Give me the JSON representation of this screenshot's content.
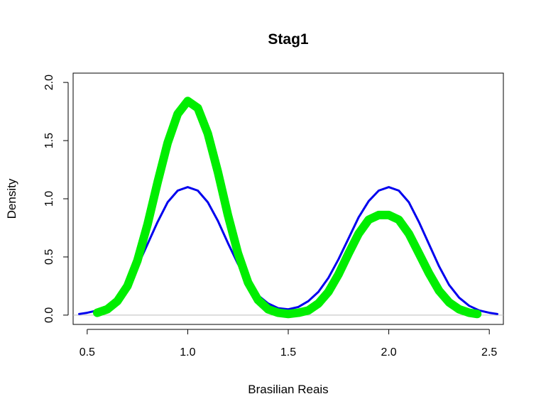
{
  "chart_data": {
    "type": "line",
    "title": "Stag1",
    "xlabel": "Brasilian Reais",
    "ylabel": "Density",
    "xlim": [
      0.43,
      2.57
    ],
    "ylim": [
      -0.08,
      2.08
    ],
    "x_ticks": [
      {
        "value": 0.5,
        "label": "0.5"
      },
      {
        "value": 1.0,
        "label": "1.0"
      },
      {
        "value": 1.5,
        "label": "1.5"
      },
      {
        "value": 2.0,
        "label": "2.0"
      },
      {
        "value": 2.5,
        "label": "2.5"
      }
    ],
    "y_ticks": [
      {
        "value": 0.0,
        "label": "0.0"
      },
      {
        "value": 0.5,
        "label": "0.5"
      },
      {
        "value": 1.0,
        "label": "1.0"
      },
      {
        "value": 1.5,
        "label": "1.5"
      },
      {
        "value": 2.0,
        "label": "2.0"
      }
    ],
    "reference_line": {
      "y": 0,
      "color": "#bebebe"
    },
    "grid": false,
    "series": [
      {
        "color": "#0000ee",
        "line": "thin",
        "x": [
          0.46,
          0.5,
          0.55,
          0.6,
          0.65,
          0.7,
          0.75,
          0.8,
          0.85,
          0.9,
          0.95,
          1.0,
          1.05,
          1.1,
          1.15,
          1.2,
          1.25,
          1.3,
          1.35,
          1.4,
          1.45,
          1.5,
          1.55,
          1.6,
          1.65,
          1.7,
          1.75,
          1.8,
          1.85,
          1.9,
          1.95,
          2.0,
          2.05,
          2.1,
          2.15,
          2.2,
          2.25,
          2.3,
          2.35,
          2.4,
          2.45,
          2.5,
          2.54
        ],
        "y": [
          0.01,
          0.02,
          0.04,
          0.08,
          0.15,
          0.26,
          0.42,
          0.61,
          0.8,
          0.97,
          1.07,
          1.1,
          1.07,
          0.97,
          0.81,
          0.62,
          0.44,
          0.28,
          0.17,
          0.1,
          0.06,
          0.05,
          0.07,
          0.12,
          0.2,
          0.32,
          0.48,
          0.66,
          0.84,
          0.98,
          1.07,
          1.1,
          1.07,
          0.97,
          0.8,
          0.61,
          0.42,
          0.26,
          0.15,
          0.08,
          0.04,
          0.02,
          0.01
        ]
      },
      {
        "color": "#00ee00",
        "line": "thick",
        "x": [
          0.55,
          0.6,
          0.65,
          0.7,
          0.75,
          0.8,
          0.85,
          0.9,
          0.95,
          1.0,
          1.05,
          1.1,
          1.15,
          1.2,
          1.25,
          1.3,
          1.35,
          1.4,
          1.45,
          1.5,
          1.55,
          1.6,
          1.65,
          1.7,
          1.75,
          1.8,
          1.85,
          1.9,
          1.95,
          2.0,
          2.05,
          2.1,
          2.15,
          2.2,
          2.25,
          2.3,
          2.35,
          2.4,
          2.44
        ],
        "y": [
          0.02,
          0.05,
          0.12,
          0.25,
          0.47,
          0.78,
          1.14,
          1.48,
          1.73,
          1.84,
          1.78,
          1.56,
          1.23,
          0.86,
          0.53,
          0.28,
          0.13,
          0.05,
          0.02,
          0.01,
          0.02,
          0.04,
          0.1,
          0.2,
          0.35,
          0.53,
          0.7,
          0.82,
          0.86,
          0.86,
          0.82,
          0.7,
          0.53,
          0.36,
          0.21,
          0.11,
          0.05,
          0.02,
          0.01
        ]
      }
    ]
  }
}
